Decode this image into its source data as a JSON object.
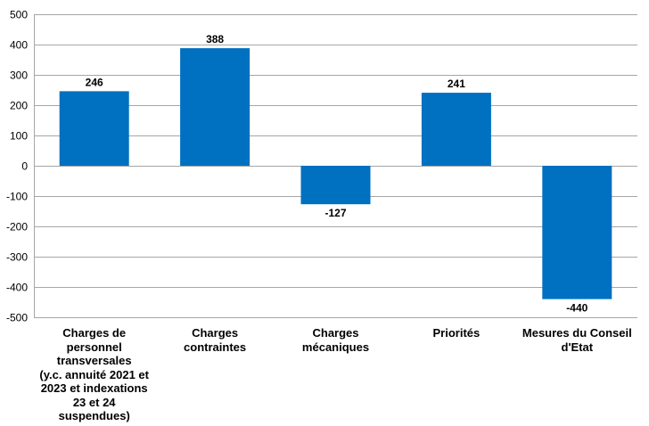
{
  "chart_data": {
    "type": "bar",
    "categories": [
      "Charges de\npersonnel\ntransversales\n(y.c. annuité 2021 et\n2023 et indexations\n23 et 24\nsuspendues)",
      "Charges\ncontraintes",
      "Charges\nmécaniques",
      "Priorités",
      "Mesures du Conseil\nd'Etat"
    ],
    "values": [
      246,
      388,
      -127,
      241,
      -440
    ],
    "data_labels": [
      "246",
      "388",
      "-127",
      "241",
      "-440"
    ],
    "yticks": [
      "500",
      "400",
      "300",
      "200",
      "100",
      "0",
      "-100",
      "-200",
      "-300",
      "-400",
      "-500"
    ],
    "ylim": [
      -500,
      500
    ],
    "ytick_step": 100,
    "grid": true,
    "legend": "none",
    "title": "",
    "xlabel": "",
    "ylabel": "",
    "bar_color": "#0070c0",
    "grid_color": "#a6a6a6"
  }
}
